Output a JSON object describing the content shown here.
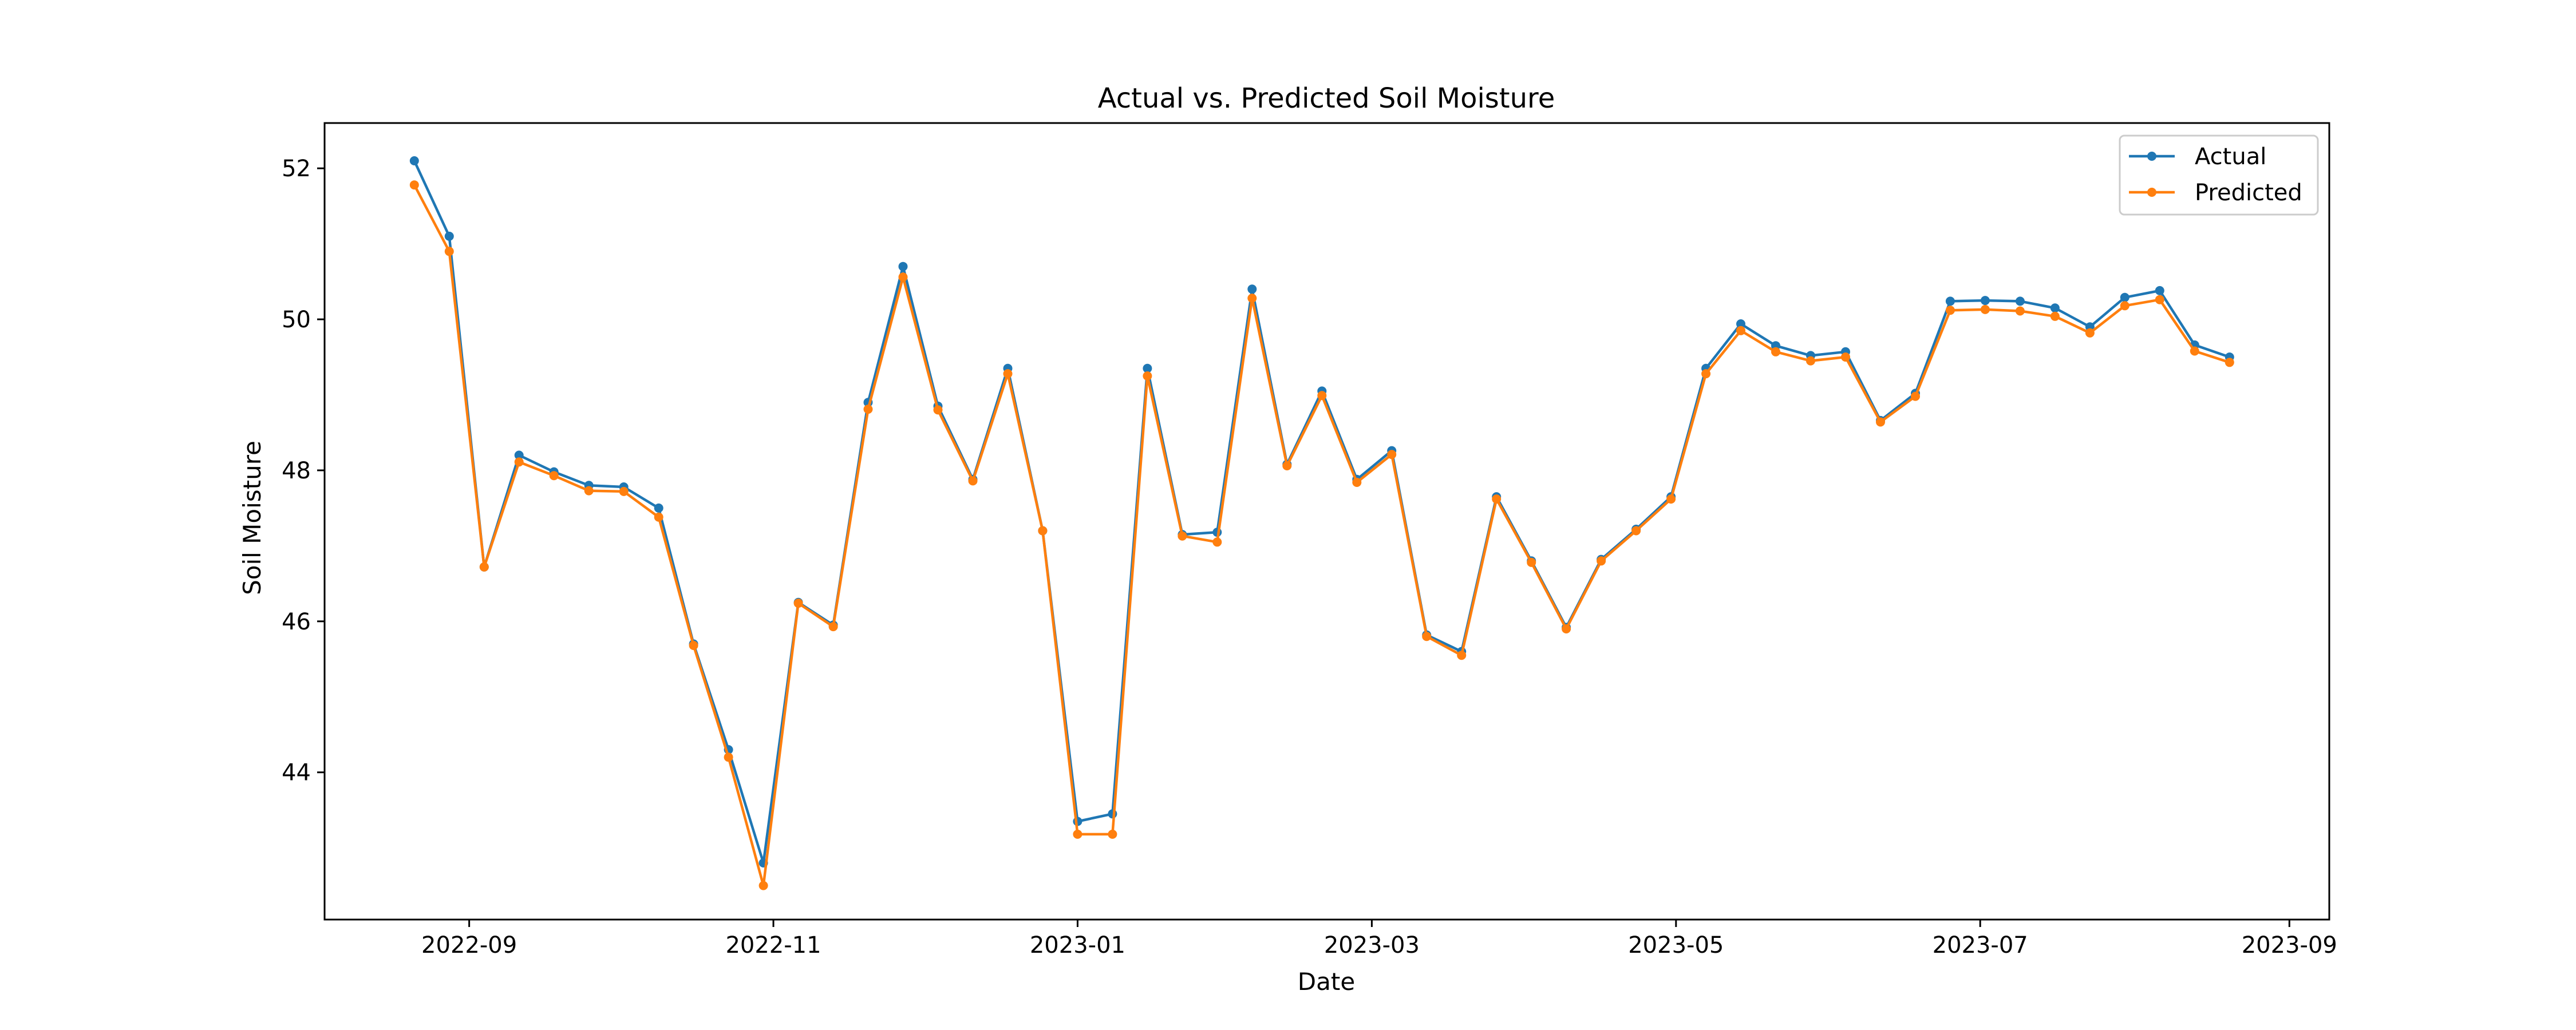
{
  "chart_data": {
    "type": "line",
    "title": "Actual vs. Predicted Soil Moisture",
    "xlabel": "Date",
    "ylabel": "Soil Moisture",
    "x_axis": {
      "min": "2022-08-03",
      "max": "2023-09-09",
      "ticks": [
        "2022-09-01",
        "2022-11-01",
        "2023-01-01",
        "2023-03-01",
        "2023-05-01",
        "2023-07-01",
        "2023-09-01"
      ],
      "tick_labels": [
        "2022-09",
        "2022-11",
        "2023-01",
        "2023-03",
        "2023-05",
        "2023-07",
        "2023-09"
      ]
    },
    "y_axis": {
      "min": 42.05,
      "max": 52.6,
      "ticks": [
        44,
        46,
        48,
        50,
        52
      ],
      "tick_labels": [
        "44",
        "46",
        "48",
        "50",
        "52"
      ]
    },
    "grid": false,
    "legend_position": "top-right",
    "x": [
      "2022-08-21",
      "2022-08-28",
      "2022-09-04",
      "2022-09-11",
      "2022-09-18",
      "2022-09-25",
      "2022-10-02",
      "2022-10-09",
      "2022-10-16",
      "2022-10-23",
      "2022-10-30",
      "2022-11-06",
      "2022-11-13",
      "2022-11-20",
      "2022-11-27",
      "2022-12-04",
      "2022-12-11",
      "2022-12-18",
      "2022-12-25",
      "2023-01-01",
      "2023-01-08",
      "2023-01-15",
      "2023-01-22",
      "2023-01-29",
      "2023-02-05",
      "2023-02-12",
      "2023-02-19",
      "2023-02-26",
      "2023-03-05",
      "2023-03-12",
      "2023-03-19",
      "2023-03-26",
      "2023-04-02",
      "2023-04-09",
      "2023-04-16",
      "2023-04-23",
      "2023-04-30",
      "2023-05-07",
      "2023-05-14",
      "2023-05-21",
      "2023-05-28",
      "2023-06-04",
      "2023-06-11",
      "2023-06-18",
      "2023-06-25",
      "2023-07-02",
      "2023-07-09",
      "2023-07-16",
      "2023-07-23",
      "2023-07-30",
      "2023-08-06",
      "2023-08-13",
      "2023-08-20"
    ],
    "series": [
      {
        "name": "Actual",
        "color": "#1f77b4",
        "values": [
          52.1,
          51.1,
          46.72,
          48.2,
          47.98,
          47.8,
          47.78,
          47.5,
          45.7,
          44.3,
          42.8,
          46.25,
          45.95,
          48.9,
          50.7,
          48.85,
          47.88,
          49.35,
          47.2,
          43.35,
          43.45,
          49.35,
          47.15,
          47.18,
          50.4,
          48.08,
          49.05,
          47.88,
          48.26,
          45.82,
          45.6,
          47.65,
          46.8,
          45.92,
          46.82,
          47.22,
          47.65,
          49.35,
          49.94,
          49.65,
          49.52,
          49.57,
          48.66,
          49.02,
          50.24,
          50.25,
          50.24,
          50.15,
          49.9,
          50.29,
          50.38,
          49.66,
          49.5
        ]
      },
      {
        "name": "Predicted",
        "color": "#ff7f0e",
        "values": [
          51.78,
          50.9,
          46.72,
          48.11,
          47.93,
          47.73,
          47.72,
          47.38,
          45.68,
          44.2,
          42.5,
          46.24,
          45.93,
          48.81,
          50.56,
          48.8,
          47.86,
          49.28,
          47.2,
          43.18,
          43.18,
          49.25,
          47.13,
          47.05,
          50.28,
          48.06,
          48.99,
          47.84,
          48.21,
          45.8,
          45.55,
          47.62,
          46.78,
          45.9,
          46.8,
          47.2,
          47.62,
          49.28,
          49.85,
          49.57,
          49.45,
          49.5,
          48.64,
          48.98,
          50.12,
          50.13,
          50.11,
          50.04,
          49.82,
          50.18,
          50.26,
          49.58,
          49.43
        ]
      }
    ]
  }
}
